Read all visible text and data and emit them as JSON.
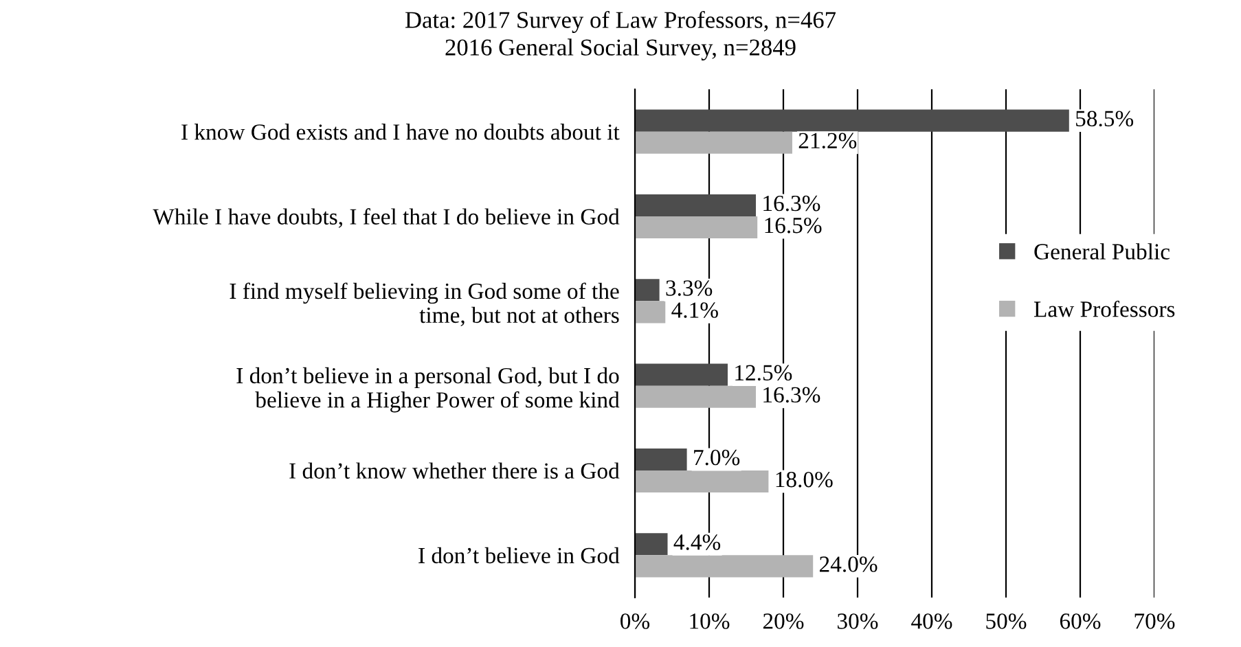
{
  "chart_data": {
    "type": "bar",
    "orientation": "horizontal",
    "title": "Data: 2017 Survey of Law Professors, n=467\n2016 General Social Survey, n=2849",
    "categories": [
      "I know God exists and I have no doubts about it",
      "While I have doubts, I feel that I do believe in God",
      "I find myself believing in God some of the\ntime, but not at others",
      "I don’t believe in a personal God, but I do\nbelieve in a Higher Power of some kind",
      "I don’t know whether there is a God",
      "I don’t believe in God"
    ],
    "series": [
      {
        "name": "General Public",
        "color": "#4d4d4d",
        "values": [
          58.5,
          16.3,
          3.3,
          12.5,
          7.0,
          4.4
        ],
        "value_labels": [
          "58.5%",
          "16.3%",
          "3.3%",
          "12.5%",
          "7.0%",
          "4.4%"
        ]
      },
      {
        "name": "Law Professors",
        "color": "#b3b3b3",
        "values": [
          21.2,
          16.5,
          4.1,
          16.3,
          18.0,
          24.0
        ],
        "value_labels": [
          "21.2%",
          "16.5%",
          "4.1%",
          "16.3%",
          "18.0%",
          "24.0%"
        ]
      }
    ],
    "xlim": [
      0,
      70
    ],
    "xticks": [
      {
        "value": 0,
        "label": "0%"
      },
      {
        "value": 10,
        "label": "10%"
      },
      {
        "value": 20,
        "label": "20%"
      },
      {
        "value": 30,
        "label": "30%"
      },
      {
        "value": 40,
        "label": "40%"
      },
      {
        "value": 50,
        "label": "50%"
      },
      {
        "value": 60,
        "label": "60%"
      },
      {
        "value": 70,
        "label": "70%"
      }
    ],
    "grid": "x",
    "legend": "right"
  }
}
